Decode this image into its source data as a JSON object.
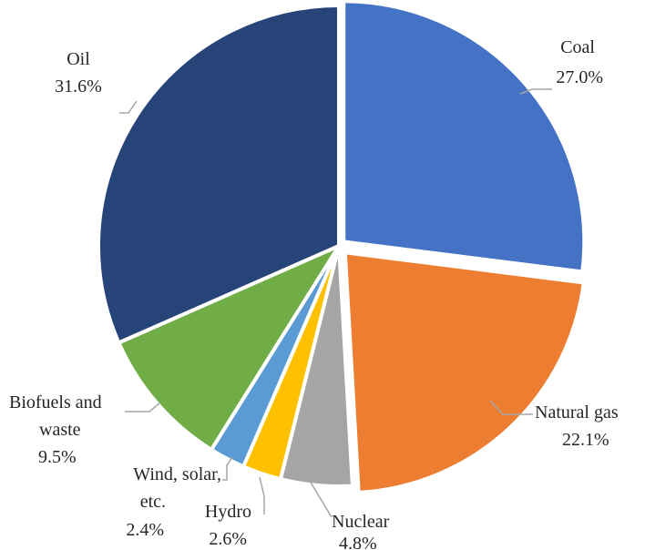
{
  "chart_data": {
    "type": "pie",
    "title": "",
    "direction": "clockwise",
    "start_angle": "12 o'clock",
    "legend": "none",
    "slices": [
      {
        "name": "Coal",
        "value": 27.0,
        "label": "27.0%",
        "color": "#4472C4"
      },
      {
        "name": "Natural gas",
        "value": 22.1,
        "label": "22.1%",
        "color": "#ED7D31"
      },
      {
        "name": "Nuclear",
        "value": 4.8,
        "label": "4.8%",
        "color": "#A5A5A5"
      },
      {
        "name": "Hydro",
        "value": 2.6,
        "label": "2.6%",
        "color": "#FFC000"
      },
      {
        "name": "Wind, solar, etc.",
        "value": 2.4,
        "label": "2.4%",
        "color": "#5B9BD5"
      },
      {
        "name": "Biofuels and waste",
        "value": 9.5,
        "label": "9.5%",
        "color": "#70AD47"
      },
      {
        "name": "Oil",
        "value": 31.6,
        "label": "31.6%",
        "color": "#264478"
      }
    ]
  }
}
